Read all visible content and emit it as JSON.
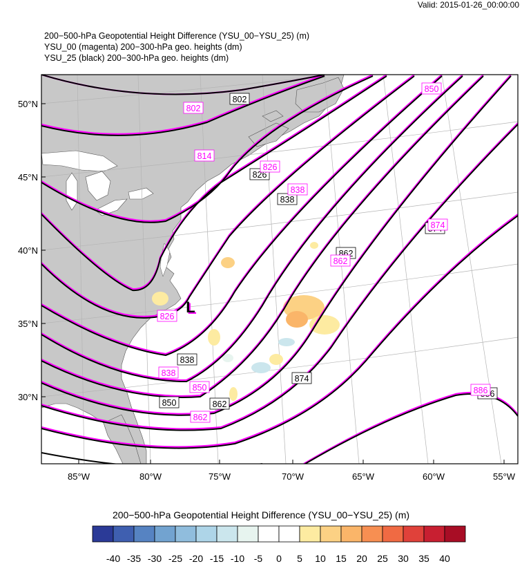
{
  "header": {
    "valid": "Valid: 2015-01-26_00:00:00",
    "title_lines": [
      "200−500-hPa Geopotential Height Difference (YSU_00−YSU_25)   (m)",
      "YSU_00 (magenta) 200−300-hPa geo. heights   (dm)",
      "YSU_25 (black) 200−300-hPa geo. heights   (dm)"
    ]
  },
  "map": {
    "lon_labels": [
      "85°W",
      "80°W",
      "75°W",
      "70°W",
      "65°W",
      "60°W",
      "55°W"
    ],
    "lat_labels": [
      "50°N",
      "45°N",
      "40°N",
      "35°N",
      "30°N"
    ],
    "low_marker": "L",
    "colors": {
      "land": "#c8c8c8",
      "ocean": "#ffffff",
      "black_contour": "#000000",
      "magenta_contour": "#ff00ff",
      "gridline": "#b4b4b4"
    },
    "contour_labels_black": [
      "802",
      "826",
      "838",
      "862",
      "874",
      "838",
      "850",
      "862",
      "874",
      "886"
    ],
    "contour_labels_magenta": [
      "802",
      "814",
      "826",
      "838",
      "850",
      "862",
      "826",
      "838",
      "850",
      "862",
      "874",
      "886"
    ]
  },
  "colorbar": {
    "title": "200−500-hPa Geopotential Height Difference (YSU_00−YSU_25)  (m)",
    "ticks": [
      "-40",
      "-35",
      "-30",
      "-25",
      "-20",
      "-15",
      "-10",
      "-5",
      "0",
      "5",
      "10",
      "15",
      "20",
      "25",
      "30",
      "35",
      "40"
    ],
    "colors": [
      "#2b3a97",
      "#3f5fb0",
      "#5683c2",
      "#72a3d0",
      "#90bddd",
      "#aed5e8",
      "#cbe6ed",
      "#e7f4ef",
      "#ffffff",
      "#ffffff",
      "#fdeba1",
      "#fcd184",
      "#fab569",
      "#f78f52",
      "#f06a43",
      "#e0413a",
      "#c81f31",
      "#a80d25"
    ]
  }
}
